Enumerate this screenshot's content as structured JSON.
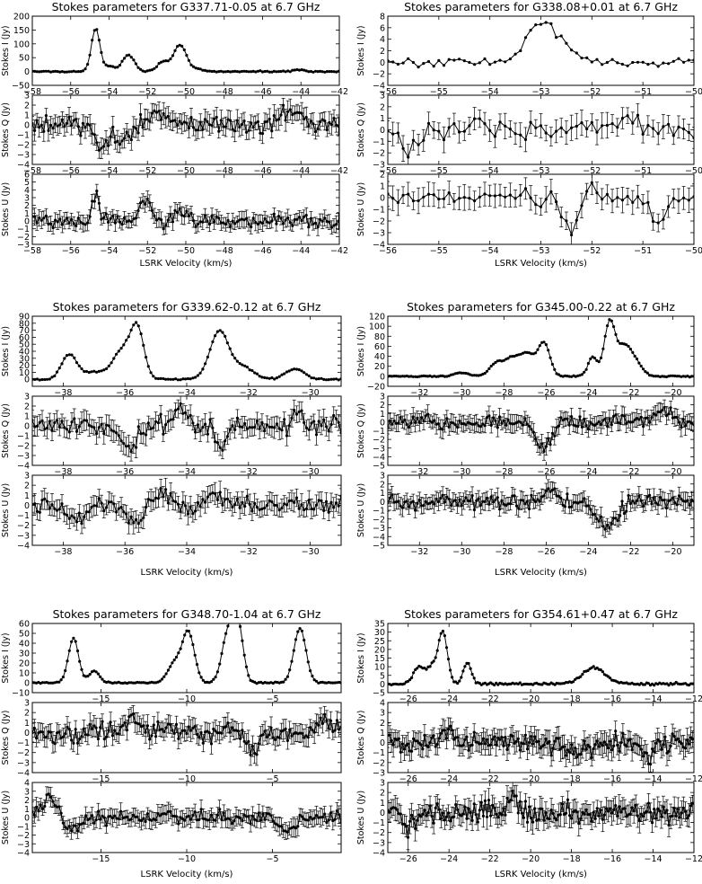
{
  "figure": {
    "description": "Six Stokes I/Q/U spectra groups"
  },
  "chart_data": [
    {
      "type": "line",
      "title": "Stokes parameters for G337.71-0.05 at 6.7 GHz",
      "xlabel": "LSRK Velocity (km/s)",
      "xlim": [
        -58,
        -42
      ],
      "xticks": [
        -58,
        -56,
        -54,
        -52,
        -50,
        -48,
        -46,
        -44,
        -42
      ],
      "panels": [
        {
          "ylabel": "Stokes I (Jy)",
          "ylim": [
            -50,
            200
          ],
          "yticks": [
            -50,
            0,
            50,
            100,
            150,
            200
          ],
          "peaks": [
            {
              "v": -54.7,
              "a": 155,
              "w": 0.22
            },
            {
              "v": -54.0,
              "a": 20,
              "w": 0.25
            },
            {
              "v": -53.0,
              "a": 60,
              "w": 0.32
            },
            {
              "v": -51.2,
              "a": 35,
              "w": 0.3
            },
            {
              "v": -50.3,
              "a": 95,
              "w": 0.33
            },
            {
              "v": -49.4,
              "a": 8,
              "w": 0.3
            },
            {
              "v": -44.1,
              "a": 7,
              "w": 0.25
            }
          ],
          "noise": 1.5,
          "errorbars": false,
          "step": 0.12
        },
        {
          "ylabel": "Stokes Q (Jy)",
          "ylim": [
            -4,
            3
          ],
          "yticks": [
            -4,
            -3,
            -2,
            -1,
            0,
            1,
            2,
            3
          ],
          "peaks": [
            {
              "v": -54.3,
              "a": -2.2,
              "w": 0.35
            },
            {
              "v": -53.3,
              "a": -1.8,
              "w": 0.3
            },
            {
              "v": -51.5,
              "a": 1.6,
              "w": 0.3
            },
            {
              "v": -44.5,
              "a": 1.1,
              "w": 0.6
            }
          ],
          "noise": 0.65,
          "err": 0.9,
          "errorbars": true,
          "step": 0.12
        },
        {
          "ylabel": "Stokes U (Jy)",
          "ylim": [
            -3,
            6
          ],
          "yticks": [
            -3,
            -2,
            -1,
            0,
            1,
            2,
            3,
            4,
            5,
            6
          ],
          "peaks": [
            {
              "v": -54.7,
              "a": 3.5,
              "w": 0.18
            },
            {
              "v": -52.1,
              "a": 2.6,
              "w": 0.25
            },
            {
              "v": -50.5,
              "a": 1.0,
              "w": 0.3
            }
          ],
          "noise": 0.6,
          "err": 0.9,
          "errorbars": true,
          "step": 0.12
        }
      ]
    },
    {
      "type": "line",
      "title": "Stokes parameters for G338.08+0.01 at 6.7 GHz",
      "xlabel": "LSRK Velocity (km/s)",
      "xlim": [
        -56,
        -50
      ],
      "xticks": [
        -56,
        -55,
        -54,
        -53,
        -52,
        -51,
        -50
      ],
      "panels": [
        {
          "ylabel": "Stokes I (Jy)",
          "ylim": [
            -4,
            8
          ],
          "yticks": [
            -4,
            -2,
            0,
            2,
            4,
            6,
            8
          ],
          "peaks": [
            {
              "v": -53.0,
              "a": 7.0,
              "w": 0.28
            },
            {
              "v": -52.5,
              "a": 1.8,
              "w": 0.2
            }
          ],
          "noise": 0.55,
          "errorbars": false,
          "step": 0.1
        },
        {
          "ylabel": "Stokes Q (Jy)",
          "ylim": [
            -3,
            3
          ],
          "yticks": [
            -3,
            -2,
            -1,
            0,
            1,
            2,
            3
          ],
          "peaks": [
            {
              "v": -55.6,
              "a": -1.8,
              "w": 0.12
            },
            {
              "v": -54.2,
              "a": 1.0,
              "w": 0.12
            },
            {
              "v": -51.3,
              "a": 1.0,
              "w": 0.15
            }
          ],
          "noise": 0.55,
          "err": 0.9,
          "errorbars": true,
          "step": 0.1
        },
        {
          "ylabel": "Stokes U (Jy)",
          "ylim": [
            -4,
            2
          ],
          "yticks": [
            -4,
            -3,
            -2,
            -1,
            0,
            1,
            2
          ],
          "peaks": [
            {
              "v": -52.4,
              "a": -2.8,
              "w": 0.15
            },
            {
              "v": -52.05,
              "a": 1.6,
              "w": 0.1
            },
            {
              "v": -50.7,
              "a": -2.0,
              "w": 0.15
            }
          ],
          "noise": 0.55,
          "err": 0.9,
          "errorbars": true,
          "step": 0.1
        }
      ]
    },
    {
      "type": "line",
      "title": "Stokes parameters for G339.62-0.12 at 6.7 GHz",
      "xlabel": "LSRK Velocity (km/s)",
      "xlim": [
        -39,
        -29
      ],
      "xticks": [
        -38,
        -36,
        -34,
        -32,
        -30
      ],
      "panels": [
        {
          "ylabel": "Stokes I (Jy)",
          "ylim": [
            -10,
            90
          ],
          "yticks": [
            0,
            10,
            20,
            30,
            40,
            50,
            60,
            70,
            80,
            90
          ],
          "peaks": [
            {
              "v": -37.8,
              "a": 35,
              "w": 0.25
            },
            {
              "v": -37.0,
              "a": 10,
              "w": 0.35
            },
            {
              "v": -36.1,
              "a": 40,
              "w": 0.3
            },
            {
              "v": -35.6,
              "a": 70,
              "w": 0.22
            },
            {
              "v": -32.95,
              "a": 68,
              "w": 0.3
            },
            {
              "v": -32.2,
              "a": 18,
              "w": 0.35
            },
            {
              "v": -30.5,
              "a": 15,
              "w": 0.3
            }
          ],
          "noise": 0.8,
          "errorbars": false,
          "step": 0.08
        },
        {
          "ylabel": "Stokes Q (Jy)",
          "ylim": [
            -4,
            3
          ],
          "yticks": [
            -4,
            -3,
            -2,
            -1,
            0,
            1,
            2,
            3
          ],
          "peaks": [
            {
              "v": -35.9,
              "a": -2.0,
              "w": 0.3
            },
            {
              "v": -34.1,
              "a": 1.5,
              "w": 0.2
            },
            {
              "v": -32.9,
              "a": -2.2,
              "w": 0.2
            },
            {
              "v": -30.4,
              "a": 1.0,
              "w": 0.2
            }
          ],
          "noise": 0.7,
          "err": 0.9,
          "errorbars": true,
          "step": 0.08
        },
        {
          "ylabel": "Stokes U (Jy)",
          "ylim": [
            -4,
            3
          ],
          "yticks": [
            -4,
            -3,
            -2,
            -1,
            0,
            1,
            2,
            3
          ],
          "peaks": [
            {
              "v": -37.6,
              "a": -1.3,
              "w": 0.3
            },
            {
              "v": -35.6,
              "a": -1.8,
              "w": 0.3
            },
            {
              "v": -34.8,
              "a": 1.4,
              "w": 0.3
            },
            {
              "v": -33.1,
              "a": 1.0,
              "w": 0.3
            }
          ],
          "noise": 0.55,
          "err": 0.9,
          "errorbars": true,
          "step": 0.08
        }
      ]
    },
    {
      "type": "line",
      "title": "Stokes parameters for G345.00-0.22 at 6.7 GHz",
      "xlabel": "LSRK Velocity (km/s)",
      "xlim": [
        -33.5,
        -19
      ],
      "xticks": [
        -32,
        -30,
        -28,
        -26,
        -24,
        -22,
        -20
      ],
      "panels": [
        {
          "ylabel": "Stokes I (Jy)",
          "ylim": [
            -20,
            120
          ],
          "yticks": [
            -20,
            0,
            20,
            40,
            60,
            80,
            100,
            120
          ],
          "peaks": [
            {
              "v": -30.0,
              "a": 7,
              "w": 0.35
            },
            {
              "v": -28.3,
              "a": 28,
              "w": 0.35
            },
            {
              "v": -27.6,
              "a": 30,
              "w": 0.3
            },
            {
              "v": -26.9,
              "a": 45,
              "w": 0.35
            },
            {
              "v": -26.1,
              "a": 65,
              "w": 0.28
            },
            {
              "v": -23.8,
              "a": 38,
              "w": 0.22
            },
            {
              "v": -23.0,
              "a": 105,
              "w": 0.25
            },
            {
              "v": -22.3,
              "a": 60,
              "w": 0.35
            },
            {
              "v": -21.7,
              "a": 20,
              "w": 0.3
            }
          ],
          "noise": 0.8,
          "errorbars": false,
          "step": 0.1
        },
        {
          "ylabel": "Stokes Q (Jy)",
          "ylim": [
            -5,
            3
          ],
          "yticks": [
            -5,
            -4,
            -3,
            -2,
            -1,
            0,
            1,
            2,
            3
          ],
          "peaks": [
            {
              "v": -26.1,
              "a": -3.0,
              "w": 0.35
            },
            {
              "v": -20.5,
              "a": 1.2,
              "w": 0.5
            }
          ],
          "noise": 0.6,
          "err": 0.9,
          "errorbars": true,
          "step": 0.1
        },
        {
          "ylabel": "Stokes U (Jy)",
          "ylim": [
            -5,
            3
          ],
          "yticks": [
            -5,
            -4,
            -3,
            -2,
            -1,
            0,
            1,
            2,
            3
          ],
          "peaks": [
            {
              "v": -23.1,
              "a": -3.0,
              "w": 0.45
            },
            {
              "v": -25.8,
              "a": 1.2,
              "w": 0.3
            }
          ],
          "noise": 0.6,
          "err": 0.9,
          "errorbars": true,
          "step": 0.1
        }
      ]
    },
    {
      "type": "line",
      "title": "Stokes parameters for G348.70-1.04 at 6.7 GHz",
      "xlabel": "LSRK Velocity (km/s)",
      "xlim": [
        -19,
        -1
      ],
      "xticks": [
        -15,
        -10,
        -5
      ],
      "panels": [
        {
          "ylabel": "Stokes I (Jy)",
          "ylim": [
            -10,
            60
          ],
          "yticks": [
            -10,
            0,
            10,
            20,
            30,
            40,
            50,
            60
          ],
          "peaks": [
            {
              "v": -16.6,
              "a": 45,
              "w": 0.3
            },
            {
              "v": -15.4,
              "a": 12,
              "w": 0.3
            },
            {
              "v": -10.7,
              "a": 20,
              "w": 0.4
            },
            {
              "v": -9.9,
              "a": 50,
              "w": 0.35
            },
            {
              "v": -7.6,
              "a": 50,
              "w": 0.35
            },
            {
              "v": -7.0,
              "a": 55,
              "w": 0.3
            },
            {
              "v": -3.4,
              "a": 55,
              "w": 0.35
            }
          ],
          "noise": 0.5,
          "errorbars": false,
          "step": 0.12
        },
        {
          "ylabel": "Stokes Q (Jy)",
          "ylim": [
            -4,
            3
          ],
          "yticks": [
            -4,
            -3,
            -2,
            -1,
            0,
            1,
            2,
            3
          ],
          "peaks": [
            {
              "v": -13.3,
              "a": 1.8,
              "w": 0.35
            },
            {
              "v": -6.2,
              "a": -1.8,
              "w": 0.4
            },
            {
              "v": -2.0,
              "a": 1.5,
              "w": 0.4
            }
          ],
          "noise": 0.7,
          "err": 0.9,
          "errorbars": true,
          "step": 0.12
        },
        {
          "ylabel": "Stokes U (Jy)",
          "ylim": [
            -4,
            4
          ],
          "yticks": [
            -4,
            -3,
            -2,
            -1,
            0,
            1,
            2,
            3,
            4
          ],
          "peaks": [
            {
              "v": -18.0,
              "a": 2.2,
              "w": 0.5
            },
            {
              "v": -16.8,
              "a": -1.5,
              "w": 0.5
            },
            {
              "v": -4.2,
              "a": -1.5,
              "w": 0.5
            }
          ],
          "noise": 0.55,
          "err": 0.9,
          "errorbars": true,
          "step": 0.12
        }
      ]
    },
    {
      "type": "line",
      "title": "Stokes parameters for G354.61+0.47 at 6.7 GHz",
      "xlabel": "LSRK Velocity (km/s)",
      "xlim": [
        -27,
        -12
      ],
      "xticks": [
        -26,
        -24,
        -22,
        -20,
        -18,
        -16,
        -14,
        -12
      ],
      "panels": [
        {
          "ylabel": "Stokes I (Jy)",
          "ylim": [
            -5,
            35
          ],
          "yticks": [
            -5,
            0,
            5,
            10,
            15,
            20,
            25,
            30,
            35
          ],
          "peaks": [
            {
              "v": -25.5,
              "a": 10,
              "w": 0.25
            },
            {
              "v": -24.85,
              "a": 10,
              "w": 0.25
            },
            {
              "v": -24.3,
              "a": 30,
              "w": 0.22
            },
            {
              "v": -23.1,
              "a": 12,
              "w": 0.2
            },
            {
              "v": -16.9,
              "a": 9.5,
              "w": 0.55
            }
          ],
          "noise": 0.5,
          "errorbars": false,
          "step": 0.09
        },
        {
          "ylabel": "Stokes Q (Jy)",
          "ylim": [
            -3,
            4
          ],
          "yticks": [
            -3,
            -2,
            -1,
            0,
            1,
            2,
            3,
            4
          ],
          "peaks": [
            {
              "v": -24.0,
              "a": 1.6,
              "w": 0.25
            },
            {
              "v": -17.7,
              "a": -1.2,
              "w": 0.5
            },
            {
              "v": -14.2,
              "a": -1.8,
              "w": 0.2
            }
          ],
          "noise": 0.75,
          "err": 1.0,
          "errorbars": true,
          "step": 0.09
        },
        {
          "ylabel": "Stokes U (Jy)",
          "ylim": [
            -4,
            3
          ],
          "yticks": [
            -4,
            -3,
            -2,
            -1,
            0,
            1,
            2,
            3
          ],
          "peaks": [
            {
              "v": -20.9,
              "a": 1.5,
              "w": 0.3
            },
            {
              "v": -25.9,
              "a": -1.4,
              "w": 0.3
            }
          ],
          "noise": 0.75,
          "err": 1.0,
          "errorbars": true,
          "step": 0.09
        }
      ]
    }
  ]
}
